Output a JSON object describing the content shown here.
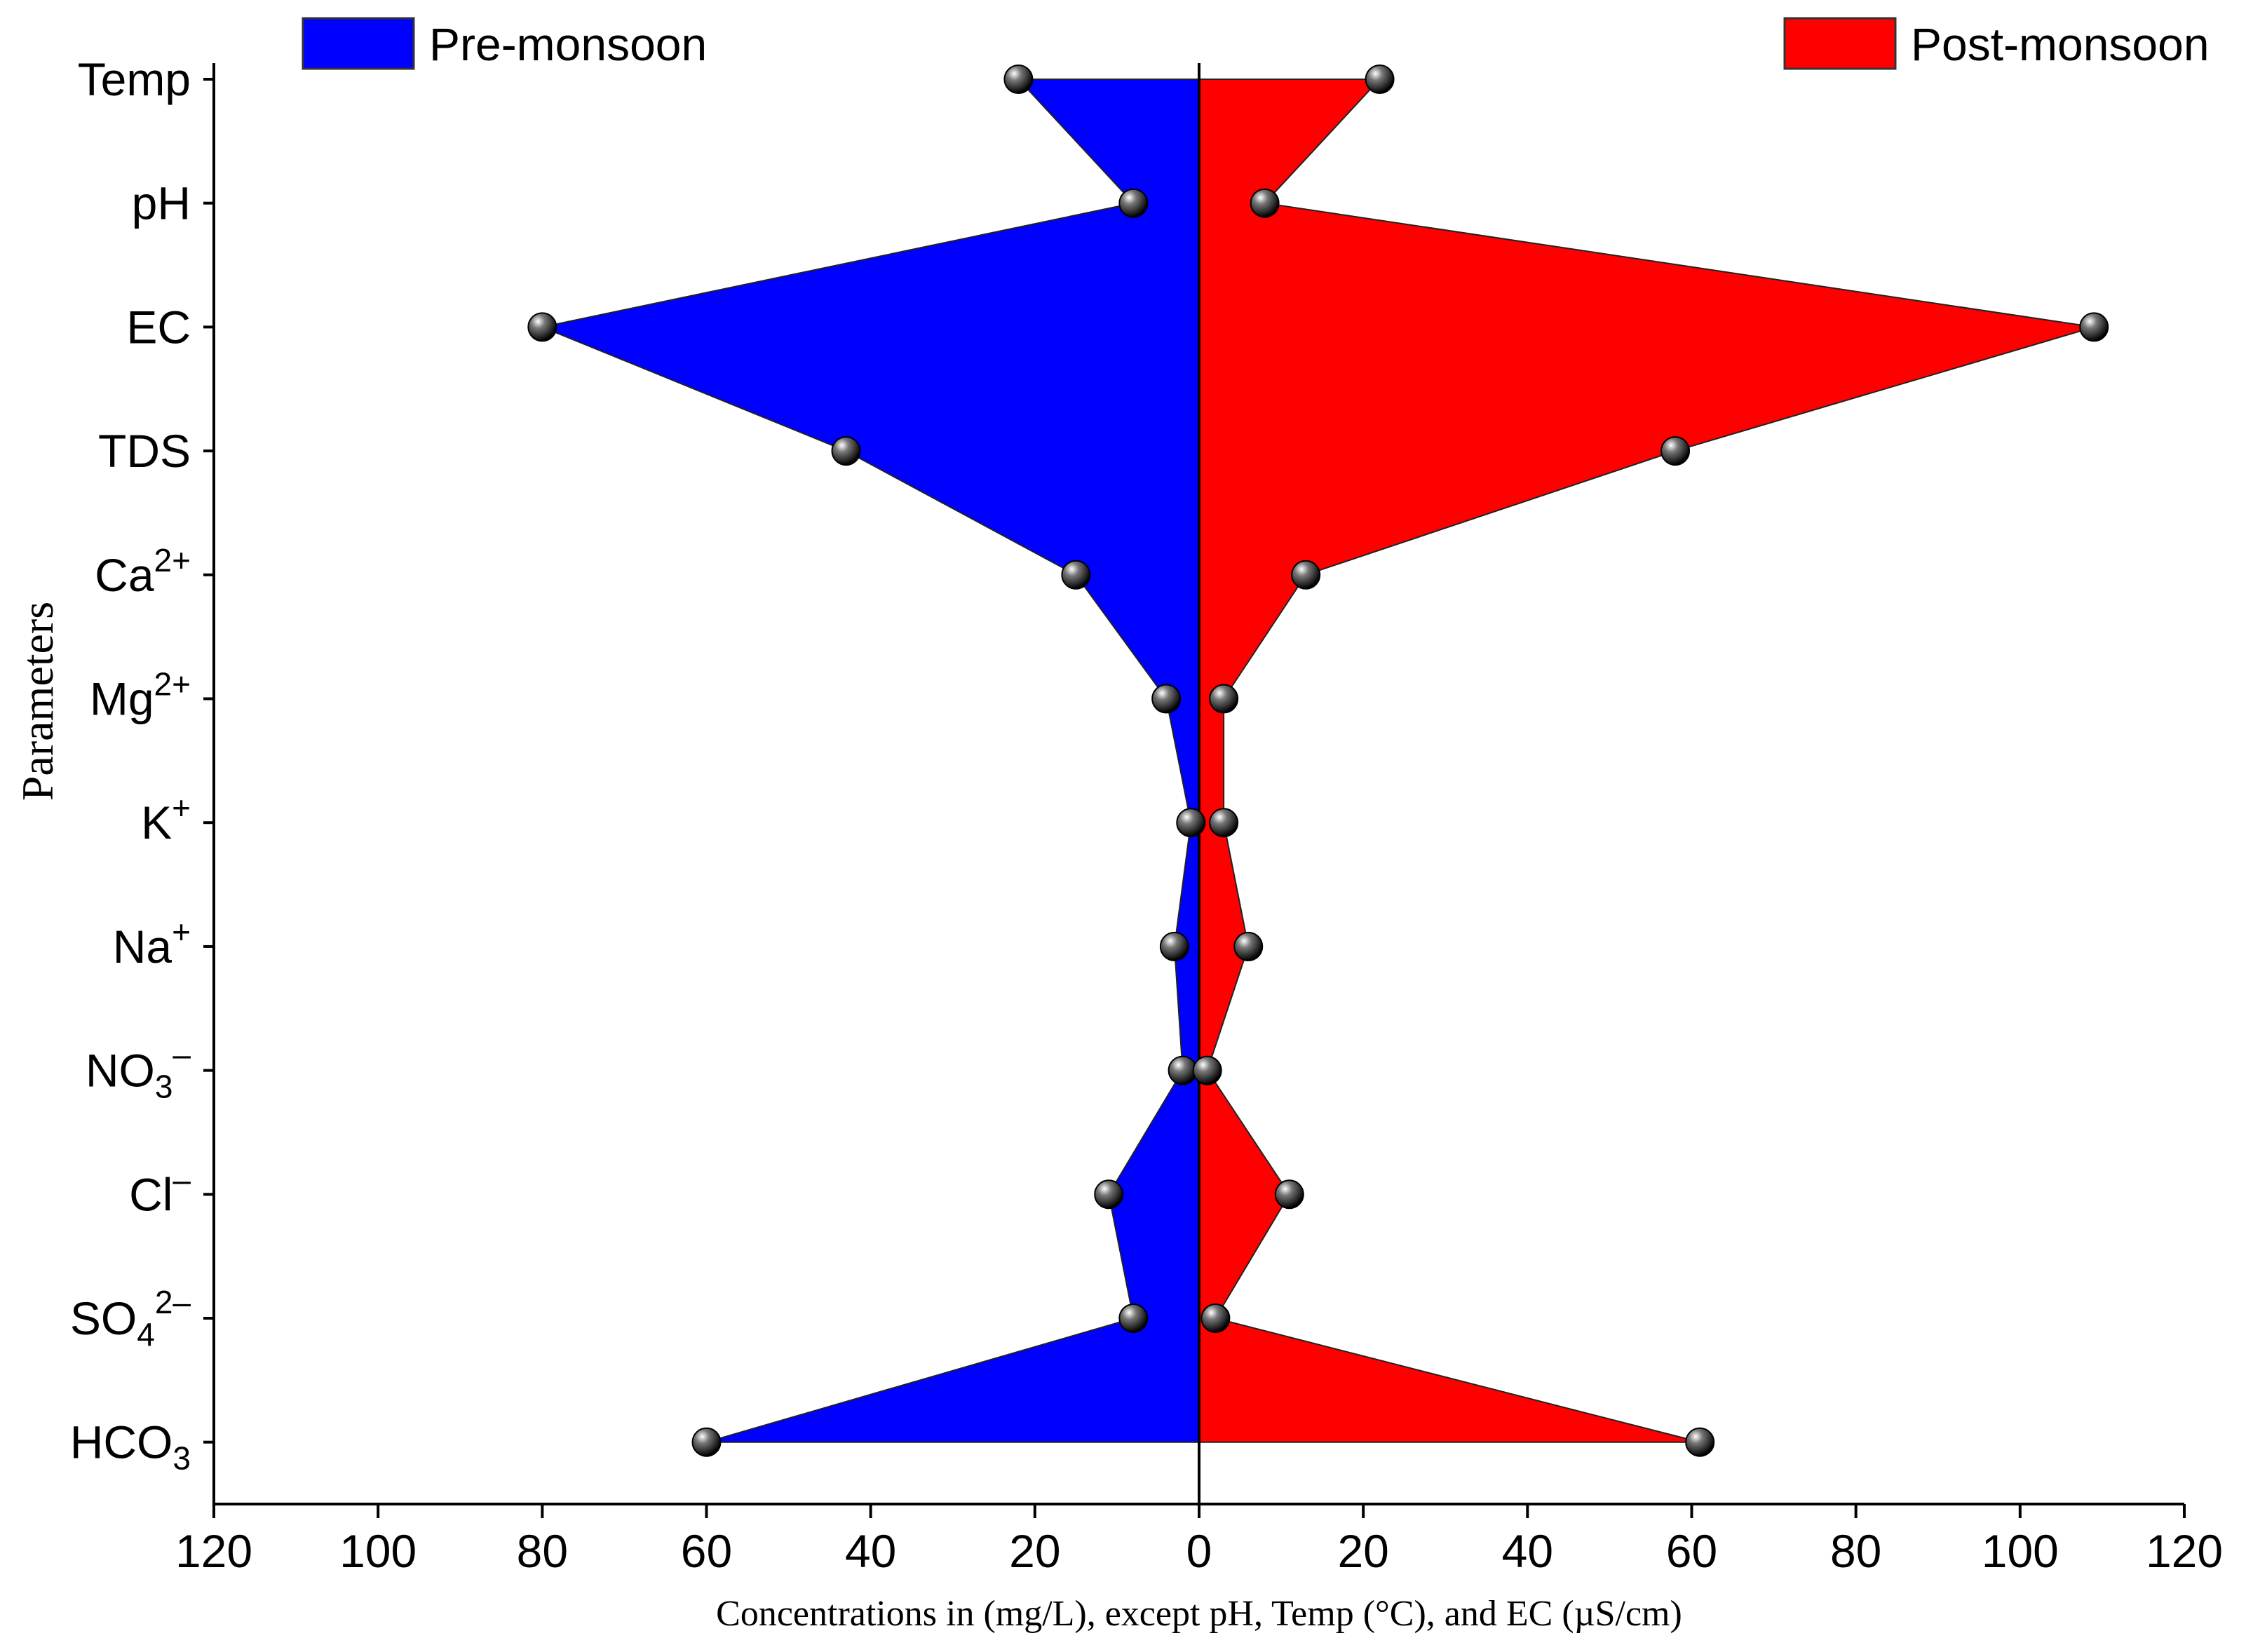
{
  "chart_data": {
    "type": "area",
    "orientation": "horizontal",
    "categories": [
      {
        "base": "Temp",
        "sup": "",
        "sub": ""
      },
      {
        "base": "pH",
        "sup": "",
        "sub": ""
      },
      {
        "base": "EC",
        "sup": "",
        "sub": ""
      },
      {
        "base": "TDS",
        "sup": "",
        "sub": ""
      },
      {
        "base": "Ca",
        "sup": "2+",
        "sub": ""
      },
      {
        "base": "Mg",
        "sup": "2+",
        "sub": ""
      },
      {
        "base": "K",
        "sup": "+",
        "sub": ""
      },
      {
        "base": "Na",
        "sup": "+",
        "sub": ""
      },
      {
        "base": "NO",
        "sup": "–",
        "sub": "3"
      },
      {
        "base": "Cl",
        "sup": "–",
        "sub": ""
      },
      {
        "base": "SO",
        "sup": "2–",
        "sub": "4"
      },
      {
        "base": "HCO",
        "sup": "",
        "sub": "3"
      }
    ],
    "series": [
      {
        "name": "Pre-monsoon",
        "color": "#0000ff",
        "direction": "left",
        "values": [
          22,
          8,
          80,
          43,
          15,
          4,
          1,
          3,
          2,
          11,
          8,
          60
        ]
      },
      {
        "name": "Post-monsoon",
        "color": "#ff0000",
        "direction": "right",
        "values": [
          22,
          8,
          109,
          58,
          13,
          3,
          3,
          6,
          1,
          11,
          2,
          61
        ]
      }
    ],
    "x_ticks": [
      "120",
      "100",
      "80",
      "60",
      "40",
      "20",
      "0",
      "20",
      "40",
      "60",
      "80",
      "100",
      "120"
    ],
    "xlim": [
      -120,
      120
    ],
    "xlabel": "Concentrations in (mg/L), except pH, Temp (°C), and EC (µS/cm)",
    "ylabel": "Parameters",
    "legend_placement": "top",
    "grid": false
  }
}
